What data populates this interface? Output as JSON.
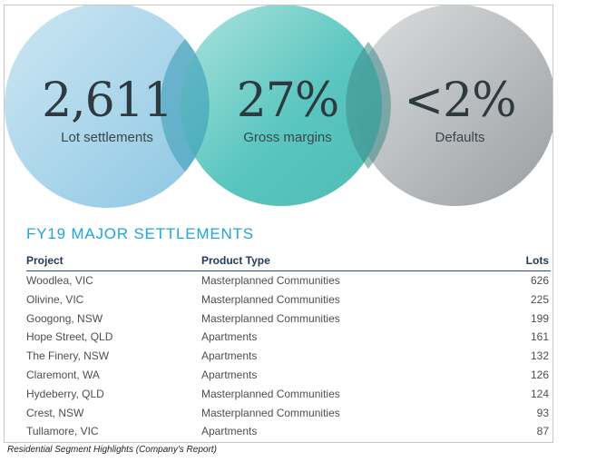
{
  "stats": [
    {
      "value": "2,611",
      "label": "Lot settlements"
    },
    {
      "value": "27%",
      "label": "Gross margins"
    },
    {
      "value": "<2%",
      "label": "Defaults"
    }
  ],
  "colors": {
    "blue_circle": "#a8d4ea",
    "teal_circle": "#5cc6c0",
    "gray_circle": "#b4b7b9",
    "title_blue": "#1fa6d9",
    "header_navy": "#223b5a"
  },
  "section_title": "FY19 MAJOR SETTLEMENTS",
  "table": {
    "headers": {
      "project": "Project",
      "product_type": "Product Type",
      "lots": "Lots"
    },
    "rows": [
      {
        "project": "Woodlea, VIC",
        "product_type": "Masterplanned Communities",
        "lots": "626"
      },
      {
        "project": "Olivine, VIC",
        "product_type": "Masterplanned Communities",
        "lots": "225"
      },
      {
        "project": "Googong, NSW",
        "product_type": "Masterplanned Communities",
        "lots": "199"
      },
      {
        "project": "Hope Street, QLD",
        "product_type": "Apartments",
        "lots": "161"
      },
      {
        "project": "The Finery, NSW",
        "product_type": "Apartments",
        "lots": "132"
      },
      {
        "project": "Claremont, WA",
        "product_type": "Apartments",
        "lots": "126"
      },
      {
        "project": "Hydeberry, QLD",
        "product_type": "Masterplanned Communities",
        "lots": "124"
      },
      {
        "project": "Crest, NSW",
        "product_type": "Masterplanned Communities",
        "lots": "93"
      },
      {
        "project": "Tullamore, VIC",
        "product_type": "Apartments",
        "lots": "87"
      }
    ]
  },
  "caption": "Residential Segment Highlights (Company's Report)"
}
